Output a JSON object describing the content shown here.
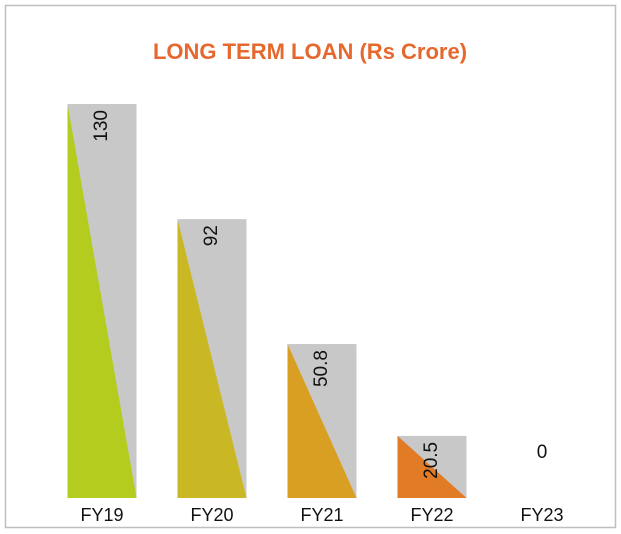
{
  "chart_data": {
    "type": "bar",
    "title": "LONG TERM LOAN  (Rs Crore)",
    "categories": [
      "FY19",
      "FY20",
      "FY21",
      "FY22",
      "FY23"
    ],
    "values": [
      130,
      92,
      50.8,
      20.5,
      0
    ],
    "colors": [
      "#b3cc1e",
      "#c9b823",
      "#d99f22",
      "#e27b25",
      "#e27b25"
    ],
    "back_color": "#c8c8c8"
  }
}
